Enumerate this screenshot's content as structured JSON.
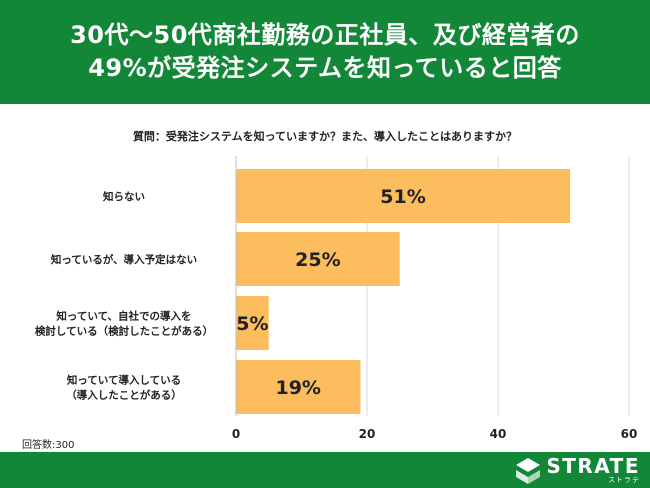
{
  "header": {
    "title_line1": "30代〜50代商社勤務の正社員、及び経営者の",
    "title_line2": "49%が受発注システムを知っていると回答"
  },
  "chart_data": {
    "type": "bar",
    "orientation": "horizontal",
    "title": "質問：受発注システムを知っていますか？また、導入したことはありますか？",
    "categories": [
      [
        "知らない"
      ],
      [
        "知っているが、導入予定はない"
      ],
      [
        "知っていて、自社での導入を",
        "検討している（検討したことがある）"
      ],
      [
        "知っていて導入している",
        "（導入したことがある）"
      ]
    ],
    "values": [
      51,
      25,
      5,
      19
    ],
    "data_labels": [
      "51%",
      "25%",
      "5%",
      "19%"
    ],
    "xlim": [
      0,
      60
    ],
    "xticks": [
      0,
      20,
      40,
      60
    ],
    "grid": true,
    "bar_color": "#FBBD5E",
    "grid_color": "#D9D9D9"
  },
  "footnote": "回答数:300",
  "logo": {
    "name": "strate-logo-icon",
    "word": "STRATE",
    "kana": "ストラテ"
  },
  "colors": {
    "brand_green": "#128738",
    "text": "#222222"
  }
}
